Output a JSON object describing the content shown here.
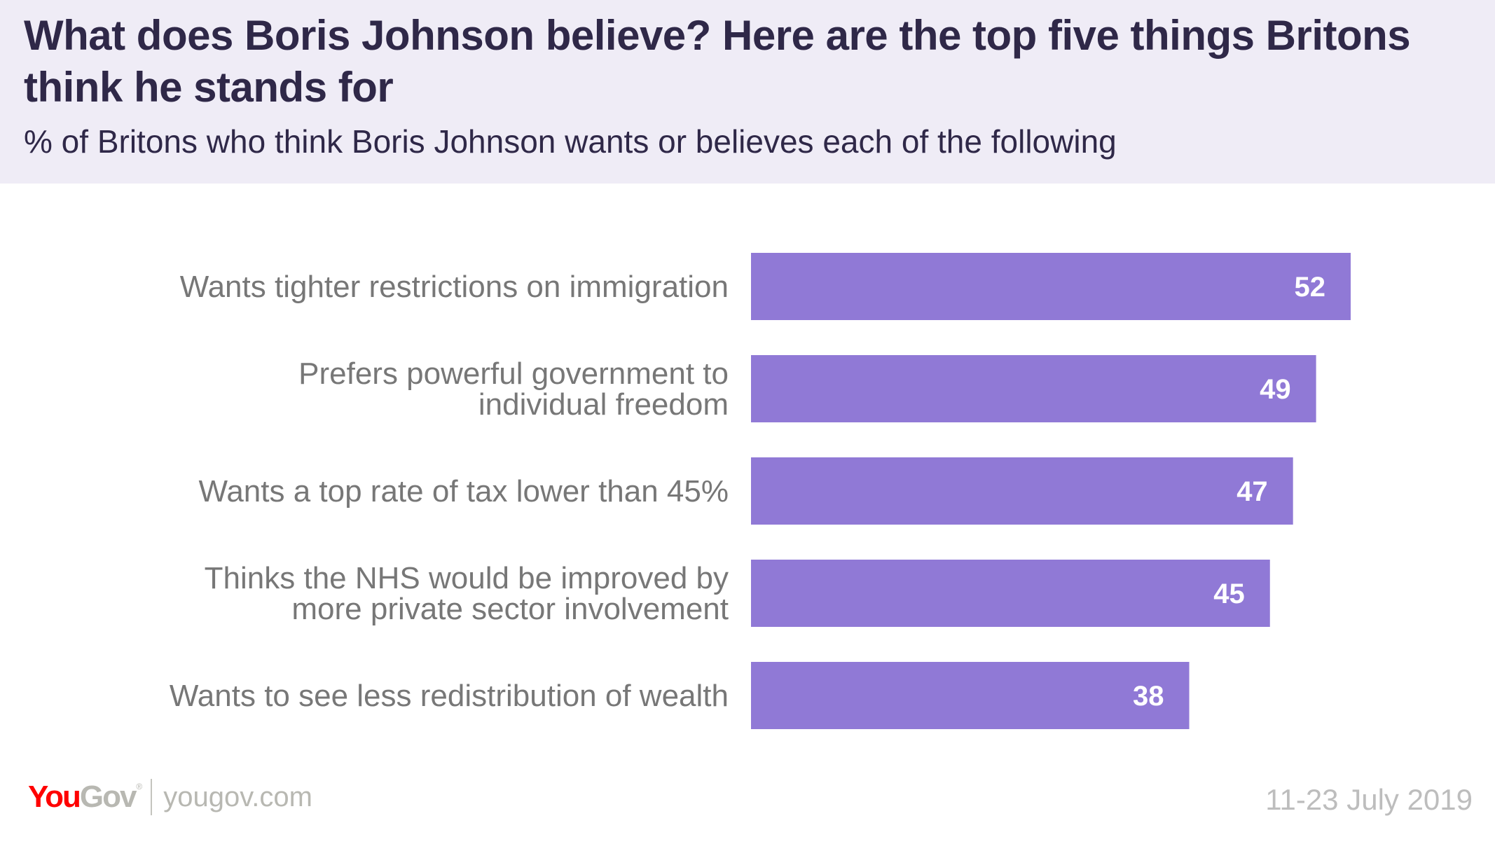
{
  "header": {
    "title": "What does Boris Johnson believe? Here are the top five things Britons think he stands for",
    "subtitle": "% of Britons who think Boris Johnson wants or believes each of the following"
  },
  "chart_data": {
    "type": "bar",
    "orientation": "horizontal",
    "title": "What does Boris Johnson believe? Here are the top five things Britons think he stands for",
    "subtitle": "% of Britons who think Boris Johnson wants or believes each of the following",
    "xlabel": "",
    "ylabel": "",
    "categories": [
      [
        "Wants tighter restrictions on immigration"
      ],
      [
        "Prefers powerful government to",
        "individual freedom"
      ],
      [
        "Wants a top rate of tax lower than 45%"
      ],
      [
        "Thinks the NHS would be improved by",
        "more private sector involvement"
      ],
      [
        "Wants to see less redistribution of wealth"
      ]
    ],
    "values": [
      52,
      49,
      47,
      45,
      38
    ],
    "value_labels": [
      "52",
      "49",
      "47",
      "45",
      "38"
    ],
    "xlim": [
      0,
      52
    ],
    "grid": false,
    "legend": "none",
    "bar_color": "#9079d6",
    "label_color": "#777777",
    "value_label_color": "#ffffff"
  },
  "footer": {
    "logo_you": "You",
    "logo_gov": "Gov",
    "logo_reg": "®",
    "site": "yougov.com",
    "date": "11-23 July 2019",
    "brand_red": "#ff0000",
    "brand_grey": "#b8b8b2"
  }
}
